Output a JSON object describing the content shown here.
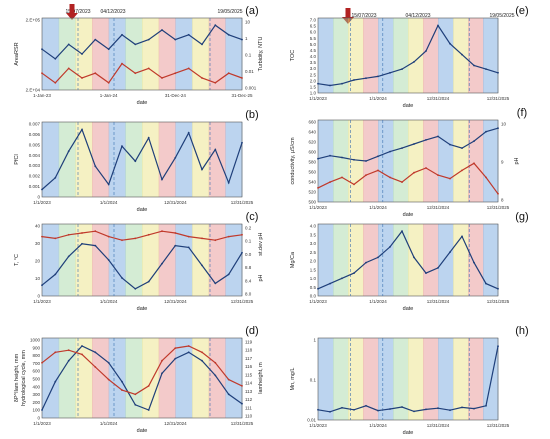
{
  "annotations": {
    "top_dates_left": [
      "15/07/2023",
      "04/12/2023",
      "19/05/2025"
    ],
    "top_dates_right": [
      "15/07/2023",
      "04/12/2023",
      "19/05/2025"
    ],
    "arrow_color": "#b22222"
  },
  "colors": {
    "band_blue": "#6a9fdc",
    "band_red": "#e58a8a",
    "band_yellow": "#e8e07a",
    "band_green": "#9fd49f",
    "series_dark": "#1f3f7a",
    "series_red": "#c0392b"
  },
  "chart_data": [
    {
      "id": "a",
      "type": "line",
      "panel_label": "(a)",
      "xlabel": "date",
      "x_ticks": [
        "1-Jan-23",
        "1-Jan-24",
        "31-Dec-24",
        "31-Dec-25"
      ],
      "ylabel_left": "AreaRSR",
      "y_ticks_left": [
        "2.E+05",
        "2.E+04"
      ],
      "ylabel_right": "Turbidity, NTU",
      "y_ticks_right": [
        "10",
        "1",
        "0.1",
        "0.01",
        "0.001"
      ],
      "yscale_right": "log",
      "series": [
        {
          "values": [
            1.4,
            1.2,
            1.5,
            1.3,
            1.6,
            1.4,
            1.7,
            1.5,
            1.6,
            1.8,
            1.6,
            1.7,
            1.5,
            1.9,
            1.7,
            1.6
          ]
        },
        {
          "values": [
            0.9,
            0.7,
            1.0,
            0.8,
            0.9,
            0.7,
            1.1,
            0.9,
            1.0,
            0.8,
            0.9,
            1.0,
            0.8,
            0.7,
            0.9,
            0.8
          ]
        }
      ]
    },
    {
      "id": "b",
      "type": "line",
      "panel_label": "(b)",
      "xlabel": "date",
      "x_ticks": [
        "1/1/2023",
        "1/1/2024",
        "12/31/2024",
        "12/31/2025"
      ],
      "ylabel_left": "PfCl",
      "y_ticks_left": [
        "0.007",
        "0.006",
        "0.005",
        "0.004",
        "0.003",
        "0.002",
        "0.001",
        "0"
      ],
      "ylim": [
        0,
        0.007
      ],
      "series": [
        {
          "values": [
            0.0005,
            0.0012,
            0.0028,
            0.0041,
            0.0019,
            0.0008,
            0.0031,
            0.0022,
            0.0036,
            0.0011,
            0.0024,
            0.0039,
            0.0017,
            0.0029,
            0.0009,
            0.0033
          ]
        }
      ]
    },
    {
      "id": "c",
      "type": "line",
      "panel_label": "(c)",
      "xlabel": "date",
      "x_ticks": [
        "1/1/2024",
        "12/31/2024",
        "12/31/2025"
      ],
      "x_first_tick": "1/1/2023",
      "ylabel_left": "T, °C",
      "y_ticks_left": [
        "40",
        "30",
        "20",
        "10",
        "0"
      ],
      "ylim": [
        0,
        45
      ],
      "ylabel_right_top": "st.dev pH",
      "ylabel_right_bottom": "pH",
      "y_ticks_right": [
        "0.2",
        "0.1",
        "0.0",
        "8.8",
        "8.4",
        "8.0"
      ],
      "series": [
        {
          "values": [
            8,
            14,
            24,
            31,
            30,
            22,
            12,
            6,
            10,
            20,
            30,
            29,
            19,
            9,
            14,
            26
          ]
        },
        {
          "values": [
            35,
            34,
            36,
            37,
            38,
            35,
            33,
            34,
            36,
            38,
            37,
            35,
            34,
            33,
            35,
            36
          ]
        }
      ]
    },
    {
      "id": "d",
      "type": "line",
      "panel_label": "(d)",
      "xlabel": "date",
      "x_ticks": [
        "1/1/2024",
        "12/31/2024",
        "12/31/2025"
      ],
      "x_first_tick": "1/1/2023",
      "ylabel_left": "δP^Ilam height, mm",
      "ylabel_left_2": "hydrological cycle, mm",
      "y_ticks_left": [
        "1000",
        "900",
        "800",
        "700",
        "600",
        "500",
        "400",
        "300",
        "200",
        "100",
        "0"
      ],
      "ylim": [
        0,
        1000
      ],
      "ylabel_right": "lamheight, m",
      "y_ticks_right": [
        "119",
        "118",
        "117",
        "116",
        "115",
        "114",
        "113",
        "112",
        "111",
        "110"
      ],
      "series": [
        {
          "values": [
            150,
            420,
            620,
            760,
            700,
            600,
            420,
            200,
            150,
            500,
            640,
            700,
            620,
            480,
            300,
            210
          ]
        },
        {
          "values": [
            600,
            700,
            720,
            680,
            560,
            440,
            340,
            300,
            380,
            620,
            740,
            760,
            700,
            600,
            440,
            380
          ]
        }
      ]
    },
    {
      "id": "e",
      "type": "line",
      "panel_label": "(e)",
      "xlabel": "date",
      "x_ticks": [
        "1/1/2023",
        "1/1/2024",
        "12/31/2024",
        "12/31/2025"
      ],
      "ylabel_left": "TOC",
      "y_ticks_left": [
        "7.0",
        "6.5",
        "6.0",
        "5.5",
        "5.0",
        "4.5",
        "4.0",
        "3.5",
        "3.0",
        "2.5",
        "2.0",
        "1.5",
        "1.0"
      ],
      "ylim": [
        1.0,
        7.0
      ],
      "series": [
        {
          "values": [
            2.4,
            2.3,
            2.4,
            2.6,
            2.7,
            2.8,
            3.0,
            3.2,
            3.6,
            4.2,
            5.6,
            4.6,
            4.0,
            3.4,
            3.2,
            3.0
          ]
        }
      ]
    },
    {
      "id": "f",
      "type": "line",
      "panel_label": "(f)",
      "xlabel": "date",
      "x_ticks": [
        "1/1/2023",
        "1/1/2024",
        "12/31/2024",
        "12/31/2025"
      ],
      "ylabel_left": "conductivity, μS/cm",
      "y_ticks_left": [
        "660",
        "640",
        "620",
        "600",
        "580",
        "560",
        "540",
        "520",
        "500"
      ],
      "ylim": [
        500,
        660
      ],
      "ylabel_right": "pH",
      "y_ticks_right": [
        "10",
        "9",
        "8"
      ],
      "series": [
        {
          "values": [
            580,
            585,
            582,
            578,
            576,
            584,
            592,
            598,
            605,
            612,
            618,
            604,
            598,
            610,
            626,
            632
          ]
        },
        {
          "values": [
            530,
            540,
            548,
            536,
            552,
            560,
            548,
            540,
            556,
            564,
            552,
            546,
            560,
            572,
            548,
            520
          ]
        }
      ]
    },
    {
      "id": "g",
      "type": "line",
      "panel_label": "(g)",
      "xlabel": "date",
      "x_ticks": [
        "1/1/2023",
        "1/1/2024",
        "12/31/2024",
        "12/31/2025"
      ],
      "ylabel_left": "Mg/Ca",
      "y_ticks_left": [
        "4.0",
        "3.5",
        "3.0",
        "2.5",
        "2.0",
        "1.5",
        "1.0",
        "0.5",
        "0.0"
      ],
      "ylim": [
        0,
        4.0
      ],
      "series": [
        {
          "values": [
            1.3,
            1.4,
            1.5,
            1.6,
            1.8,
            1.9,
            2.1,
            2.4,
            1.9,
            1.6,
            1.7,
            2.0,
            2.3,
            1.8,
            1.4,
            1.3
          ]
        }
      ]
    },
    {
      "id": "h",
      "type": "line",
      "panel_label": "(h)",
      "xlabel": "date",
      "x_ticks": [
        "1/1/2023",
        "1/1/2024",
        "12/31/2024",
        "12/31/2025"
      ],
      "ylabel_left": "Mn, mg/L",
      "y_ticks_left": [
        "1",
        "0.1",
        "0.01"
      ],
      "yscale_left": "log",
      "series": [
        {
          "values": [
            0.04,
            0.035,
            0.045,
            0.04,
            0.05,
            0.038,
            0.042,
            0.047,
            0.036,
            0.041,
            0.044,
            0.039,
            0.046,
            0.043,
            0.05,
            0.2
          ]
        }
      ]
    }
  ]
}
